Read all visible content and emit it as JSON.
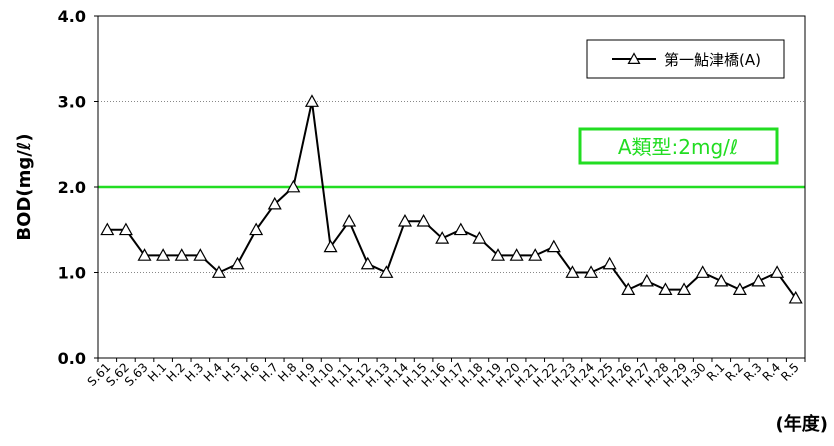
{
  "chart_data": {
    "type": "line",
    "ylabel": "BOD(mg/ℓ)",
    "xlabel": "(年度)",
    "ylim": [
      0,
      4
    ],
    "yticks": [
      "0.0",
      "1.0",
      "2.0",
      "3.0",
      "4.0"
    ],
    "grid": "horizontal dotted",
    "legend_position": "top-right",
    "categories": [
      "S.61",
      "S.62",
      "S.63",
      "H.1",
      "H.2",
      "H.3",
      "H.4",
      "H.5",
      "H.6",
      "H.7",
      "H.8",
      "H.9",
      "H.10",
      "H.11",
      "H.12",
      "H.13",
      "H.14",
      "H.15",
      "H.16",
      "H.17",
      "H.18",
      "H.19",
      "H.20",
      "H.21",
      "H.22",
      "H.23",
      "H.24",
      "H.25",
      "H.26",
      "H.27",
      "H.28",
      "H.29",
      "H.30",
      "R.1",
      "R.2",
      "R.3",
      "R.4",
      "R.5"
    ],
    "series": [
      {
        "name": "第一鮎津橋(A)",
        "color": "#000000",
        "marker": "open-triangle",
        "values": [
          1.5,
          1.5,
          1.2,
          1.2,
          1.2,
          1.2,
          1.0,
          1.1,
          1.5,
          1.8,
          2.0,
          3.0,
          1.3,
          1.6,
          1.1,
          1.0,
          1.6,
          1.6,
          1.4,
          1.5,
          1.4,
          1.2,
          1.2,
          1.2,
          1.3,
          1.0,
          1.0,
          1.1,
          0.8,
          0.9,
          0.8,
          0.8,
          1.0,
          0.9,
          0.8,
          0.9,
          1.0,
          0.7
        ]
      }
    ],
    "reference_line": {
      "label": "A類型:2mg/ℓ",
      "value": 2.0,
      "color": "#22dd22"
    }
  }
}
